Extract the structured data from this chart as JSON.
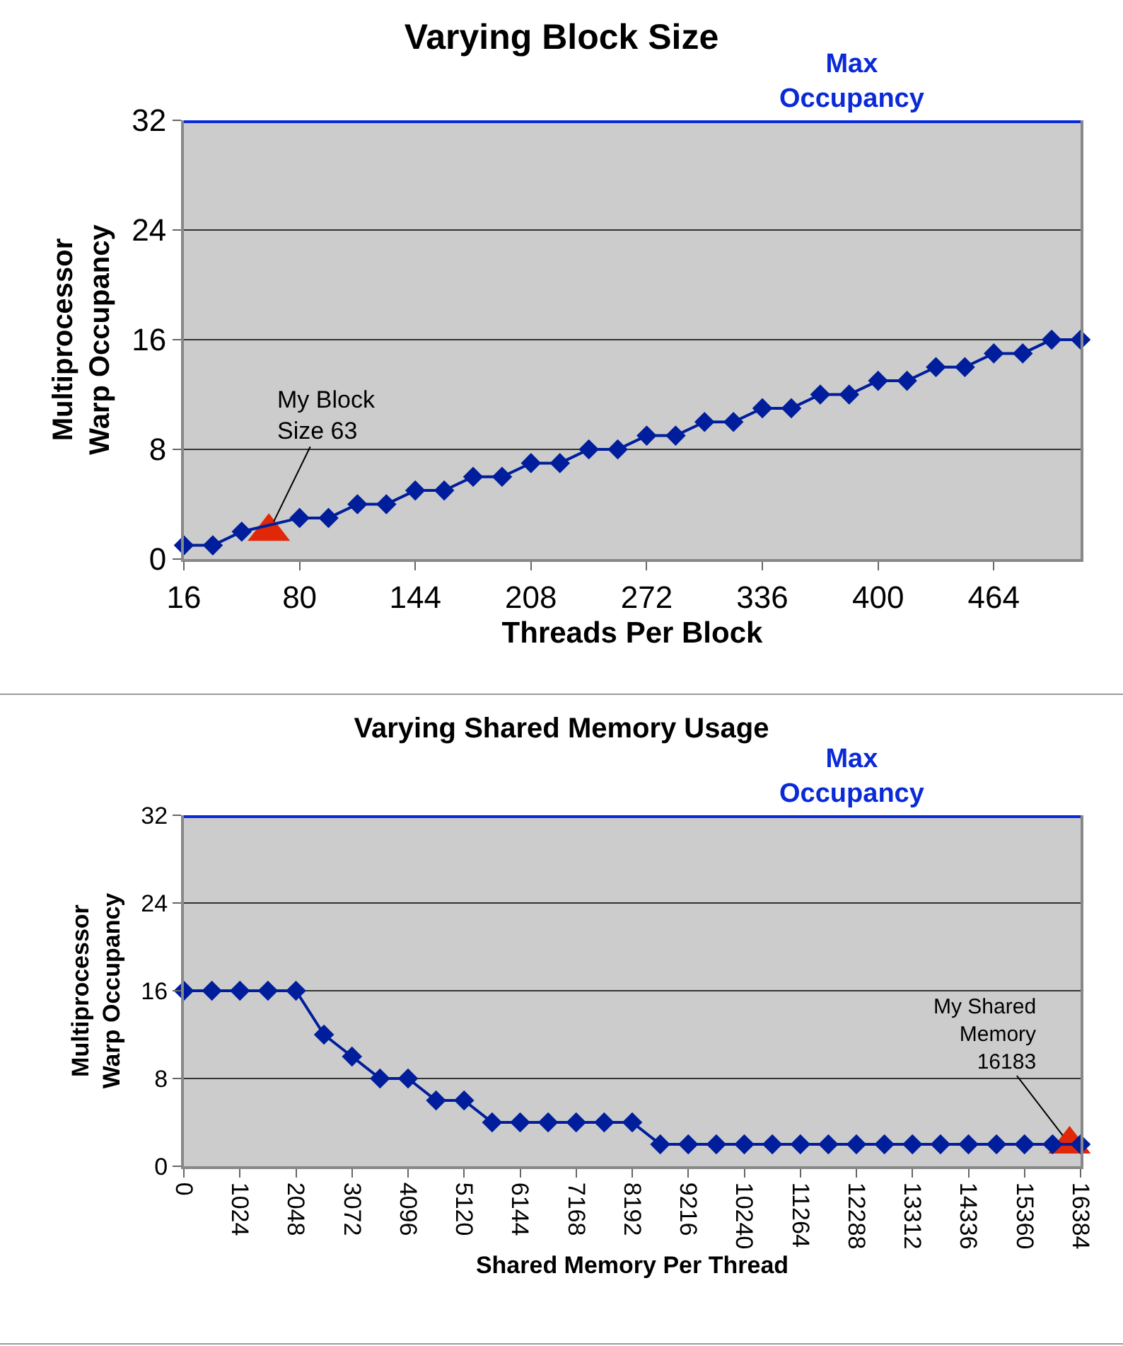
{
  "chart_data": [
    {
      "type": "line",
      "title": "Varying Block Size",
      "xlabel": "Threads Per Block",
      "ylabel": "Multiprocessor\nWarp Occupancy",
      "x": [
        16,
        32,
        48,
        64,
        80,
        96,
        112,
        128,
        144,
        160,
        176,
        192,
        208,
        224,
        240,
        256,
        272,
        288,
        304,
        320,
        336,
        352,
        368,
        384,
        400,
        416,
        432,
        448,
        464,
        480,
        496,
        512
      ],
      "series": [
        {
          "type": "scatter",
          "color": "#e02808",
          "marker": "triangle",
          "x": [
            63
          ],
          "values": [
            2
          ]
        },
        {
          "color": "#001e9c",
          "marker": "diamond",
          "values": [
            1,
            1,
            2,
            null,
            3,
            3,
            4,
            4,
            5,
            5,
            6,
            6,
            7,
            7,
            8,
            8,
            9,
            9,
            10,
            10,
            11,
            11,
            12,
            12,
            13,
            13,
            14,
            14,
            15,
            15,
            16,
            16
          ]
        }
      ],
      "xlim": [
        16,
        512
      ],
      "xticks": [
        16,
        80,
        144,
        208,
        272,
        336,
        400,
        464
      ],
      "ylim": [
        0,
        32
      ],
      "yticks": [
        0,
        8,
        16,
        24,
        32
      ],
      "grid": "y",
      "line_style": "solid",
      "ref_lines": [
        {
          "axis": "y",
          "value": 32,
          "label": "Max\nOccupancy",
          "color": "#0a2ad8"
        }
      ],
      "annotations": [
        {
          "text": "My Block\nSize 63",
          "x": 63,
          "y": 2
        }
      ]
    },
    {
      "type": "line",
      "title": "Varying Shared Memory Usage",
      "xlabel": "Shared Memory Per Thread",
      "ylabel": "Multiprocessor\nWarp Occupancy",
      "x": [
        0,
        512,
        1024,
        1536,
        2048,
        2560,
        3072,
        3584,
        4096,
        4608,
        5120,
        5632,
        6144,
        6656,
        7168,
        7680,
        8192,
        8704,
        9216,
        9728,
        10240,
        10752,
        11264,
        11776,
        12288,
        12800,
        13312,
        13824,
        14336,
        14848,
        15360,
        15872,
        16384
      ],
      "series": [
        {
          "type": "scatter",
          "color": "#e02808",
          "marker": "triangle",
          "x": [
            16183
          ],
          "values": [
            2
          ]
        },
        {
          "color": "#001e9c",
          "marker": "diamond",
          "values": [
            16,
            16,
            16,
            16,
            16,
            12,
            10,
            8,
            8,
            6,
            6,
            4,
            4,
            4,
            4,
            4,
            4,
            2,
            2,
            2,
            2,
            2,
            2,
            2,
            2,
            2,
            2,
            2,
            2,
            2,
            2,
            2,
            2
          ]
        }
      ],
      "xlim": [
        0,
        16384
      ],
      "xticks": [
        0,
        1024,
        2048,
        3072,
        4096,
        5120,
        6144,
        7168,
        8192,
        9216,
        10240,
        11264,
        12288,
        13312,
        14336,
        15360,
        16384
      ],
      "ylim": [
        0,
        32
      ],
      "yticks": [
        0,
        8,
        16,
        24,
        32
      ],
      "grid": "y",
      "line_style": "solid",
      "ref_lines": [
        {
          "axis": "y",
          "value": 32,
          "label": "Max\nOccupancy",
          "color": "#0a2ad8"
        }
      ],
      "annotations": [
        {
          "text": "My Shared\nMemory\n16183",
          "x": 16183,
          "y": 2
        }
      ]
    }
  ]
}
